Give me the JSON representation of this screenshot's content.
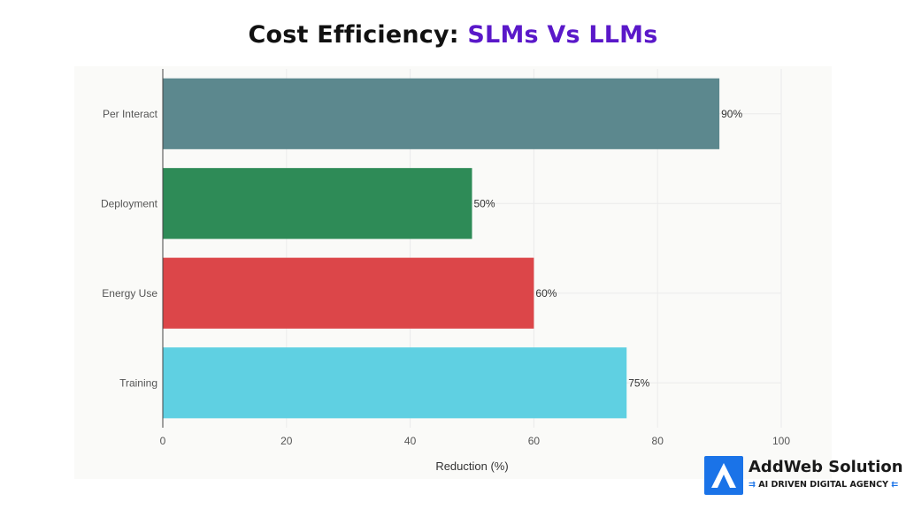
{
  "title": {
    "prefix": "Cost Efficiency: ",
    "highlight": "SLMs Vs LLMs"
  },
  "colors": {
    "title_accent": "#5a18c9",
    "brand_blue": "#1a73e8"
  },
  "chart_data": {
    "type": "bar",
    "orientation": "horizontal",
    "categories": [
      "Per Interact",
      "Deployment",
      "Energy Use",
      "Training"
    ],
    "values": [
      90,
      50,
      60,
      75
    ],
    "data_labels": [
      "90%",
      "50%",
      "60%",
      "75%"
    ],
    "bar_colors": [
      "#5c888e",
      "#2e8b57",
      "#dc4649",
      "#5fd0e2"
    ],
    "xlabel": "Reduction (%)",
    "ylabel": "",
    "xlim": [
      0,
      100
    ],
    "xticks": [
      0,
      20,
      40,
      60,
      80,
      100
    ],
    "grid": true,
    "legend": "none"
  },
  "logo": {
    "name": "AddWeb Solution",
    "tagline": "AI DRIVEN DIGITAL AGENCY",
    "arrow_left": "⇉",
    "arrow_right": "⇇"
  }
}
